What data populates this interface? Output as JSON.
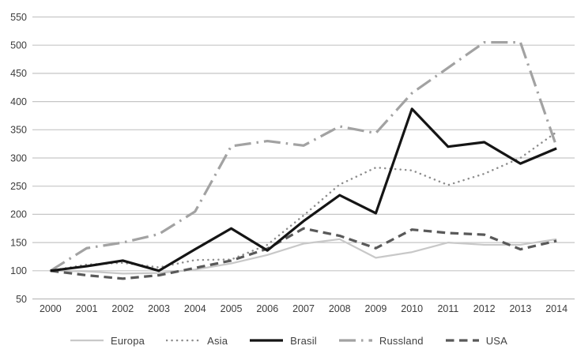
{
  "chart_data": {
    "type": "line",
    "title": "",
    "x": [
      "2000",
      "2001",
      "2002",
      "2003",
      "2004",
      "2005",
      "2006",
      "2007",
      "2008",
      "2009",
      "2010",
      "2011",
      "2012",
      "2013",
      "2014"
    ],
    "y_ticks": [
      50,
      100,
      150,
      200,
      250,
      300,
      350,
      400,
      450,
      500,
      550
    ],
    "ylim": [
      50,
      550
    ],
    "grid": "horizontal",
    "legend_position": "bottom",
    "colors": {
      "background": "#ffffff",
      "gridline": "#c6c6c6",
      "axis_line": "#bdbdbd",
      "tick_label": "#3c3c3c"
    },
    "series": [
      {
        "name": "Europa",
        "color": "#c8c8c8",
        "line_style": "solid",
        "line_width": 2.2,
        "values": [
          100,
          99,
          95,
          96,
          102,
          113,
          128,
          148,
          156,
          123,
          133,
          150,
          146,
          146,
          156
        ]
      },
      {
        "name": "Asia",
        "color": "#8d8d8d",
        "line_style": "dotted",
        "line_width": 2.5,
        "values": [
          100,
          111,
          114,
          106,
          119,
          120,
          146,
          198,
          253,
          283,
          278,
          252,
          272,
          300,
          346
        ]
      },
      {
        "name": "Brasil",
        "color": "#151515",
        "line_style": "solid",
        "line_width": 3.2,
        "values": [
          100,
          108,
          118,
          100,
          138,
          175,
          136,
          188,
          234,
          202,
          387,
          320,
          328,
          290,
          317
        ]
      },
      {
        "name": "Russland",
        "color": "#a2a2a2",
        "line_style": "long-dash-dot",
        "line_width": 3.2,
        "values": [
          100,
          140,
          150,
          165,
          205,
          321,
          330,
          322,
          356,
          344,
          415,
          460,
          505,
          505,
          320
        ]
      },
      {
        "name": "USA",
        "color": "#595959",
        "line_style": "dash",
        "line_width": 3.2,
        "values": [
          100,
          92,
          86,
          92,
          105,
          118,
          139,
          175,
          162,
          140,
          173,
          167,
          164,
          138,
          153
        ]
      }
    ]
  }
}
